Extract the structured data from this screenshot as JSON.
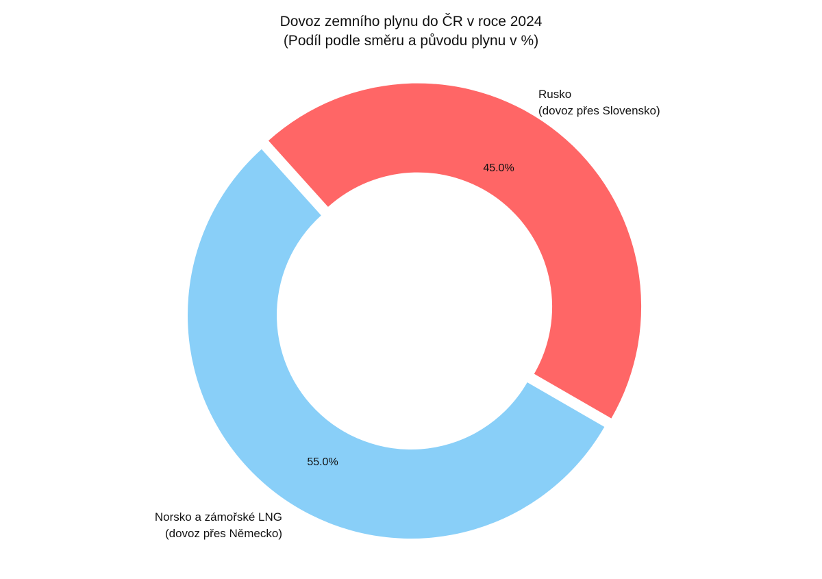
{
  "chart_data": {
    "type": "pie",
    "style": "donut",
    "title": "Dovoz zemního plynu do ČR v roce 2024",
    "subtitle": "(Podíl podle směru a původu plynu v %)",
    "slices": [
      {
        "label_line1": "Rusko",
        "label_line2": "(dovoz přes Slovensko)",
        "value": 45.0,
        "value_label": "45.0%",
        "color": "#FF6666",
        "exploded": true
      },
      {
        "label_line1": "Norsko a zámořské LNG",
        "label_line2": "(dovoz přes Německo)",
        "value": 55.0,
        "value_label": "55.0%",
        "color": "#89CFF8",
        "exploded": false
      }
    ],
    "start_angle_deg": 132,
    "direction": "clockwise",
    "legend": "none",
    "grid": false
  }
}
